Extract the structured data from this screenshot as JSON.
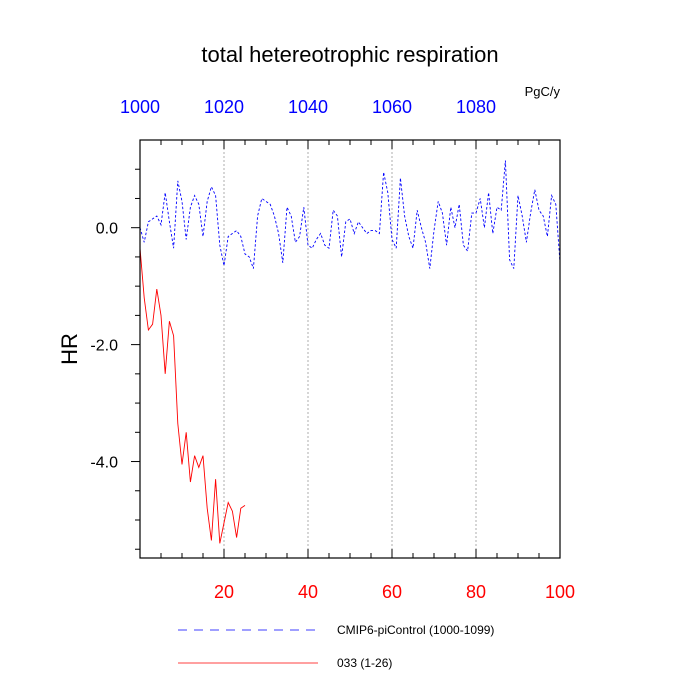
{
  "chart_data": {
    "type": "line",
    "title": "total hetereotrophic respiration",
    "units": "PgC/y",
    "ylabel": "HR",
    "xlabel": "",
    "ylim": [
      -5.65,
      1.5
    ],
    "xlim_bottom": [
      0,
      100
    ],
    "xlim_top": [
      1000,
      1100
    ],
    "bottom_ticks": [
      "20",
      "40",
      "60",
      "80",
      "100"
    ],
    "top_ticks": [
      "1000",
      "1020",
      "1040",
      "1060",
      "1080"
    ],
    "y_ticks": [
      "0.0",
      "-2.0",
      "-4.0"
    ],
    "grid": "vertical dashed",
    "legend_position": "bottom",
    "series": [
      {
        "name": "CMIP6-piControl (1000-1099)",
        "axis": "top",
        "color": "#0000ff",
        "style": "dashed",
        "x": [
          1000,
          1001,
          1002,
          1003,
          1004,
          1005,
          1006,
          1007,
          1008,
          1009,
          1010,
          1011,
          1012,
          1013,
          1014,
          1015,
          1016,
          1017,
          1018,
          1019,
          1020,
          1021,
          1022,
          1023,
          1024,
          1025,
          1026,
          1027,
          1028,
          1029,
          1030,
          1031,
          1032,
          1033,
          1034,
          1035,
          1036,
          1037,
          1038,
          1039,
          1040,
          1041,
          1042,
          1043,
          1044,
          1045,
          1046,
          1047,
          1048,
          1049,
          1050,
          1051,
          1052,
          1053,
          1054,
          1055,
          1056,
          1057,
          1058,
          1059,
          1060,
          1061,
          1062,
          1063,
          1064,
          1065,
          1066,
          1067,
          1068,
          1069,
          1070,
          1071,
          1072,
          1073,
          1074,
          1075,
          1076,
          1077,
          1078,
          1079,
          1080,
          1081,
          1082,
          1083,
          1084,
          1085,
          1086,
          1087,
          1088,
          1089,
          1090,
          1091,
          1092,
          1093,
          1094,
          1095,
          1096,
          1097,
          1098,
          1099,
          1100
        ],
        "values": [
          0.0,
          -0.25,
          0.1,
          0.15,
          0.2,
          0.05,
          0.6,
          0.1,
          -0.35,
          0.8,
          0.45,
          -0.2,
          0.35,
          0.55,
          0.4,
          -0.15,
          0.45,
          0.7,
          0.55,
          -0.3,
          -0.65,
          -0.15,
          -0.1,
          -0.05,
          -0.15,
          -0.45,
          -0.5,
          -0.7,
          0.2,
          0.5,
          0.45,
          0.4,
          0.2,
          -0.1,
          -0.6,
          0.35,
          0.2,
          -0.25,
          -0.15,
          0.35,
          -0.3,
          -0.35,
          -0.2,
          -0.1,
          -0.3,
          -0.35,
          0.3,
          0.2,
          -0.5,
          0.1,
          0.15,
          -0.1,
          0.1,
          0.0,
          -0.1,
          -0.05,
          -0.05,
          -0.1,
          0.95,
          0.6,
          -0.2,
          -0.35,
          0.85,
          0.2,
          -0.15,
          -0.35,
          0.3,
          0.0,
          -0.25,
          -0.7,
          -0.05,
          0.45,
          0.25,
          -0.3,
          0.35,
          0.0,
          0.4,
          -0.3,
          -0.4,
          0.25,
          0.25,
          0.5,
          0.0,
          0.6,
          -0.1,
          0.35,
          0.3,
          1.15,
          -0.55,
          -0.7,
          0.55,
          0.2,
          -0.25,
          0.25,
          0.65,
          0.3,
          0.2,
          -0.15,
          0.55,
          0.4,
          -0.6
        ]
      },
      {
        "name": "033 (1-26)",
        "axis": "bottom",
        "color": "#ff0000",
        "style": "solid",
        "x": [
          0,
          1,
          2,
          3,
          4,
          5,
          6,
          7,
          8,
          9,
          10,
          11,
          12,
          13,
          14,
          15,
          16,
          17,
          18,
          19,
          20,
          21,
          22,
          23,
          24,
          25
        ],
        "values": [
          -0.35,
          -1.2,
          -1.75,
          -1.65,
          -1.05,
          -1.5,
          -2.5,
          -1.6,
          -1.85,
          -3.35,
          -4.05,
          -3.5,
          -4.35,
          -3.9,
          -4.1,
          -3.9,
          -4.8,
          -5.35,
          -4.3,
          -5.4,
          -5.05,
          -4.7,
          -4.85,
          -5.3,
          -4.8,
          -4.75
        ]
      }
    ]
  }
}
